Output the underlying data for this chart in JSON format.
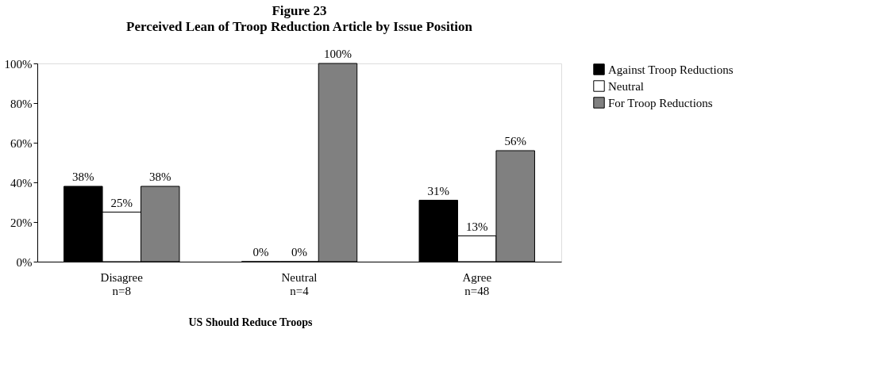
{
  "chart_data": {
    "type": "bar",
    "title": "Figure 23",
    "subtitle": "Perceived Lean of Troop Reduction Article by Issue Position",
    "xlabel": "US Should Reduce Troops",
    "categories": [
      "Disagree\nn=8",
      "Neutral\nn=4",
      "Agree\nn=48"
    ],
    "series": [
      {
        "name": "Against Troop Reductions",
        "color": "#000000",
        "values": [
          38,
          0,
          31
        ]
      },
      {
        "name": "Neutral",
        "color": "#ffffff",
        "values": [
          25,
          0,
          13
        ]
      },
      {
        "name": "For Troop Reductions",
        "color": "#808080",
        "values": [
          38,
          100,
          56
        ]
      }
    ],
    "ylim": [
      0,
      100
    ],
    "yticks": [
      {
        "value": 0,
        "label": "0%"
      },
      {
        "value": 20,
        "label": "20%"
      },
      {
        "value": 40,
        "label": "40%"
      },
      {
        "value": 60,
        "label": "60%"
      },
      {
        "value": 80,
        "label": "80%"
      },
      {
        "value": 100,
        "label": "100%"
      }
    ],
    "value_labels": [
      [
        "38%",
        "0%",
        "31%"
      ],
      [
        "25%",
        "0%",
        "13%"
      ],
      [
        "38%",
        "100%",
        "56%"
      ]
    ],
    "grid": false,
    "legend": "right"
  }
}
